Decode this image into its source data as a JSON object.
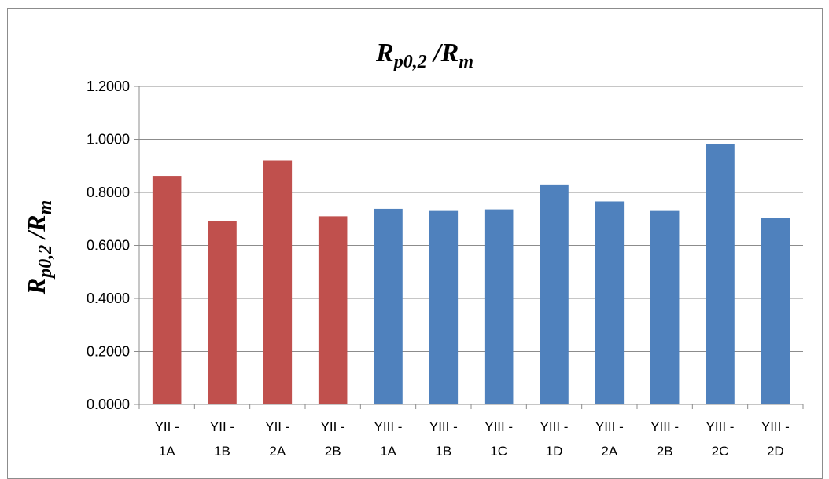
{
  "chart_data": {
    "type": "bar",
    "title": {
      "main": "R",
      "sub": "p0,2",
      "sep": " /R",
      "sub2": "m"
    },
    "ylabel": {
      "main": "R",
      "sub": "p0,2",
      "sep": " /R",
      "sub2": "m"
    },
    "categories": [
      [
        "YII -",
        "1A"
      ],
      [
        "YII -",
        "1B"
      ],
      [
        "YII -",
        "2A"
      ],
      [
        "YII -",
        "2B"
      ],
      [
        "YIII -",
        "1A"
      ],
      [
        "YIII -",
        "1B"
      ],
      [
        "YIII -",
        "1C"
      ],
      [
        "YIII -",
        "1D"
      ],
      [
        "YIII -",
        "2A"
      ],
      [
        "YIII -",
        "2B"
      ],
      [
        "YIII -",
        "2C"
      ],
      [
        "YIII -",
        "2D"
      ]
    ],
    "values": [
      0.862,
      0.692,
      0.92,
      0.71,
      0.738,
      0.73,
      0.736,
      0.83,
      0.766,
      0.73,
      0.983,
      0.705
    ],
    "bar_colors": [
      "#c0504d",
      "#c0504d",
      "#c0504d",
      "#c0504d",
      "#4f81bd",
      "#4f81bd",
      "#4f81bd",
      "#4f81bd",
      "#4f81bd",
      "#4f81bd",
      "#4f81bd",
      "#4f81bd"
    ],
    "ylim": [
      0,
      1.2
    ],
    "yticks": [
      0,
      0.2,
      0.4,
      0.6,
      0.8,
      1.0,
      1.2
    ],
    "ytick_labels": [
      "0.0000",
      "0.2000",
      "0.4000",
      "0.6000",
      "0.8000",
      "1.0000",
      "1.2000"
    ],
    "grid": true,
    "grid_color": "#8c8c8c"
  }
}
